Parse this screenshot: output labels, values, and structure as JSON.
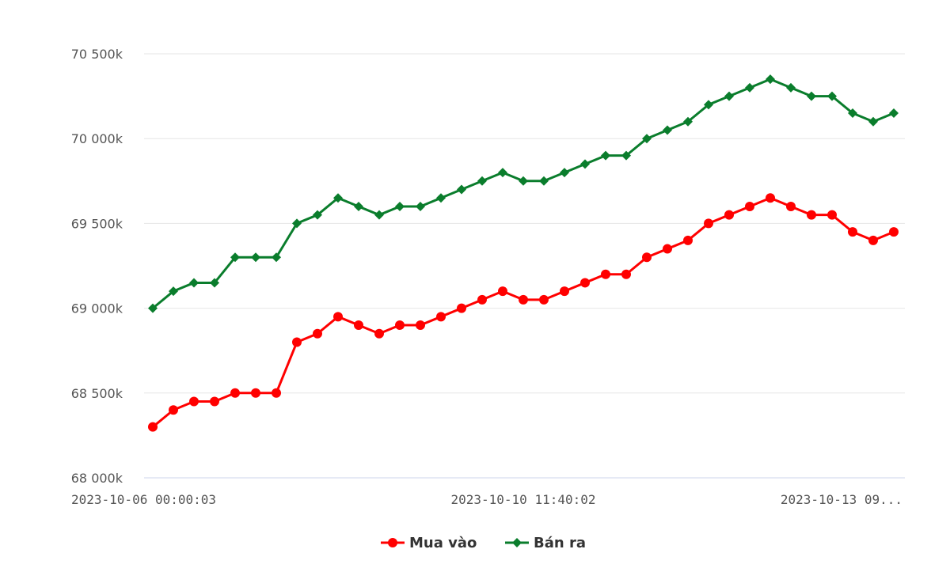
{
  "chart_data": {
    "type": "line",
    "y_ticks": [
      "70 500k",
      "70 000k",
      "69 500k",
      "69 000k",
      "68 500k",
      "68 000k"
    ],
    "y_tick_values": [
      70500,
      70000,
      69500,
      69000,
      68500,
      68000
    ],
    "ylim": [
      68000,
      70500
    ],
    "x_tick_labels": [
      {
        "index": 0,
        "label": "2023-10-06 00:00:03"
      },
      {
        "index": 18,
        "label": "2023-10-10 11:40:02"
      },
      {
        "index": 36,
        "label": "2023-10-13 09..."
      }
    ],
    "grid": true,
    "legend_position": "bottom",
    "series": [
      {
        "name": "Mua vào",
        "color": "#ff0000",
        "marker": "circle",
        "values": [
          68300,
          68400,
          68450,
          68450,
          68500,
          68500,
          68500,
          68800,
          68850,
          68950,
          68900,
          68850,
          68900,
          68900,
          68950,
          69000,
          69050,
          69100,
          69050,
          69050,
          69100,
          69150,
          69200,
          69200,
          69300,
          69350,
          69400,
          69500,
          69550,
          69600,
          69650,
          69600,
          69550,
          69550,
          69450,
          69400,
          69450
        ]
      },
      {
        "name": "Bán ra",
        "color": "#0a7d2c",
        "marker": "diamond",
        "values": [
          69000,
          69100,
          69150,
          69150,
          69300,
          69300,
          69300,
          69500,
          69550,
          69650,
          69600,
          69550,
          69600,
          69600,
          69650,
          69700,
          69750,
          69800,
          69750,
          69750,
          69800,
          69850,
          69900,
          69900,
          70000,
          70050,
          70100,
          70200,
          70250,
          70300,
          70350,
          70300,
          70250,
          70250,
          70150,
          70100,
          70150
        ]
      }
    ]
  }
}
